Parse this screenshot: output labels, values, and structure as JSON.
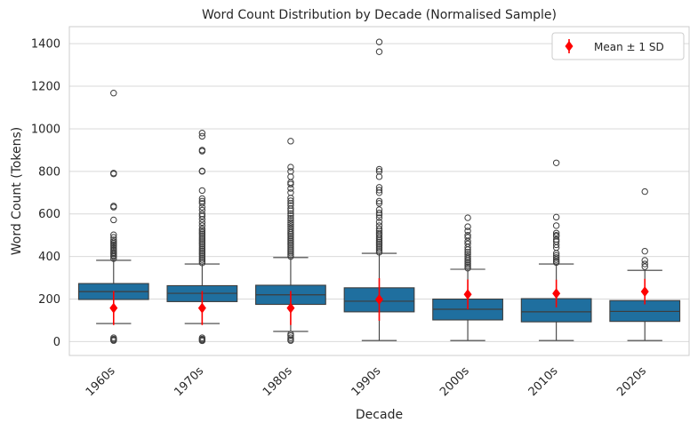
{
  "chart_data": {
    "type": "box",
    "title": "Word Count Distribution by Decade (Normalised Sample)",
    "xlabel": "Decade",
    "ylabel": "Word Count (Tokens)",
    "ylim": [
      -65,
      1480
    ],
    "yticks": [
      0,
      200,
      400,
      600,
      800,
      1000,
      1200,
      1400
    ],
    "grid": "y",
    "box_color": "#1f6f9f",
    "mean_color": "#ff0000",
    "legend": {
      "position": "top-right",
      "entries": [
        "Mean ± 1 SD"
      ]
    },
    "categories": [
      "1960s",
      "1970s",
      "1980s",
      "1990s",
      "2000s",
      "2010s",
      "2020s"
    ],
    "boxes": [
      {
        "q1": 198,
        "median": 235,
        "q3": 273,
        "whisker_low": 85,
        "whisker_high": 382,
        "mean": 158,
        "sd": 80,
        "outliers": [
          5,
          8,
          12,
          18,
          390,
          400,
          405,
          412,
          418,
          425,
          432,
          440,
          448,
          455,
          462,
          470,
          478,
          490,
          502,
          572,
          632,
          637,
          788,
          792,
          1168
        ]
      },
      {
        "q1": 188,
        "median": 227,
        "q3": 263,
        "whisker_low": 85,
        "whisker_high": 365,
        "mean": 158,
        "sd": 80,
        "outliers": [
          4,
          8,
          12,
          18,
          370,
          378,
          386,
          394,
          402,
          410,
          418,
          426,
          434,
          442,
          450,
          458,
          466,
          474,
          482,
          490,
          498,
          506,
          514,
          522,
          530,
          545,
          560,
          575,
          590,
          600,
          618,
          632,
          650,
          660,
          672,
          710,
          800,
          802,
          895,
          900,
          965,
          980
        ]
      },
      {
        "q1": 175,
        "median": 220,
        "q3": 265,
        "whisker_low": 48,
        "whisker_high": 395,
        "mean": 158,
        "sd": 80,
        "outliers": [
          5,
          10,
          18,
          28,
          35,
          400,
          408,
          416,
          424,
          432,
          440,
          448,
          456,
          464,
          472,
          480,
          488,
          496,
          504,
          512,
          520,
          530,
          540,
          550,
          560,
          570,
          580,
          592,
          602,
          615,
          625,
          640,
          650,
          662,
          675,
          700,
          720,
          740,
          748,
          775,
          800,
          820,
          942
        ]
      },
      {
        "q1": 140,
        "median": 190,
        "q3": 253,
        "whisker_low": 5,
        "whisker_high": 415,
        "mean": 198,
        "sd": 100,
        "outliers": [
          420,
          428,
          436,
          444,
          452,
          460,
          468,
          476,
          484,
          492,
          502,
          510,
          520,
          530,
          545,
          562,
          582,
          595,
          605,
          620,
          650,
          660,
          700,
          712,
          725,
          775,
          800,
          810,
          1362,
          1408
        ]
      },
      {
        "q1": 102,
        "median": 152,
        "q3": 200,
        "whisker_low": 5,
        "whisker_high": 340,
        "mean": 222,
        "sd": 70,
        "outliers": [
          345,
          352,
          360,
          368,
          376,
          384,
          392,
          400,
          410,
          420,
          432,
          444,
          460,
          472,
          490,
          500,
          520,
          540,
          582
        ]
      },
      {
        "q1": 93,
        "median": 140,
        "q3": 202,
        "whisker_low": 5,
        "whisker_high": 365,
        "mean": 226,
        "sd": 65,
        "outliers": [
          372,
          378,
          386,
          395,
          405,
          415,
          442,
          455,
          470,
          480,
          495,
          500,
          510,
          545,
          585,
          840
        ]
      },
      {
        "q1": 95,
        "median": 142,
        "q3": 193,
        "whisker_low": 5,
        "whisker_high": 335,
        "mean": 235,
        "sd": 60,
        "outliers": [
          352,
          365,
          382,
          425,
          705
        ]
      }
    ]
  }
}
